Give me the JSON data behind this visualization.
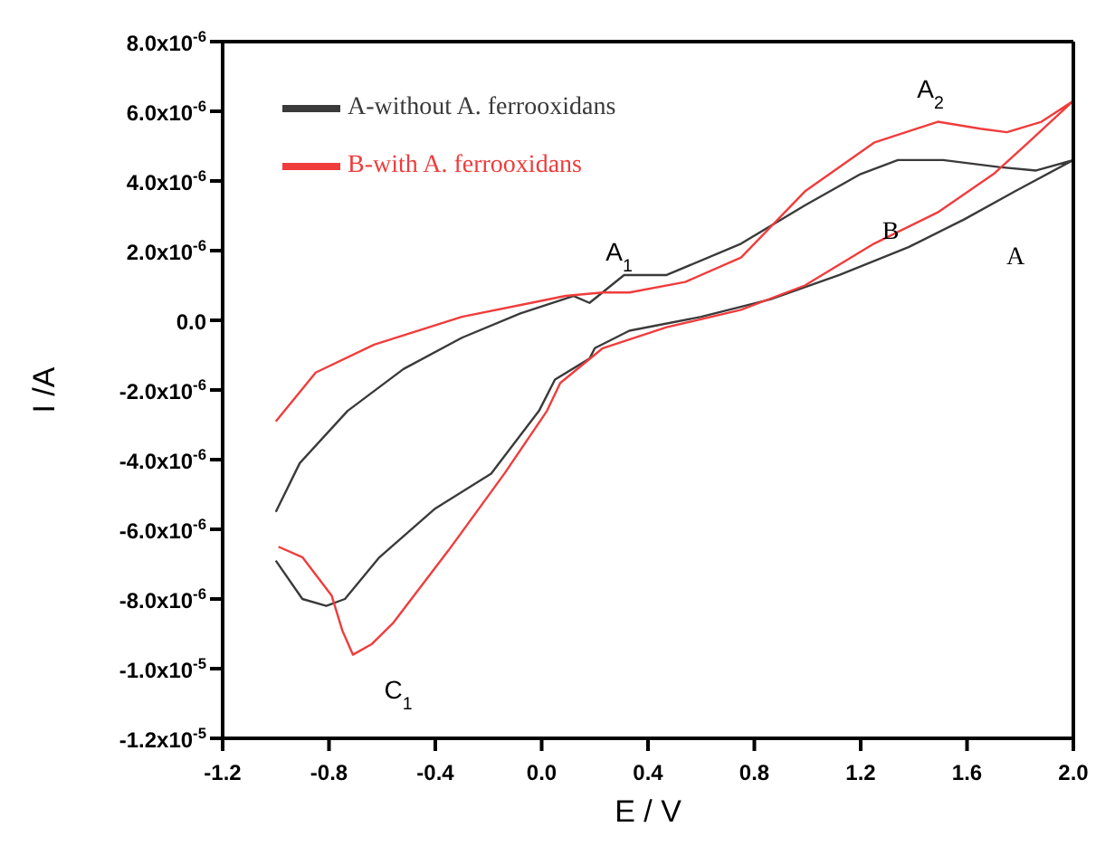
{
  "chart_data": {
    "type": "line",
    "xlabel": "E / V",
    "ylabel": "I /A",
    "xlim": [
      -1.2,
      2.0
    ],
    "xticks": [
      -1.2,
      -0.8,
      -0.4,
      {
        "value": 0,
        "label": "0.0"
      },
      0.4,
      0.8,
      1.2,
      1.6,
      {
        "value": 2,
        "label": "2.0"
      }
    ],
    "ylim": [
      -1.2e-05,
      8e-06
    ],
    "yticks": [
      {
        "value": -1.2e-05,
        "label": "-1.2x10$^{-5}$"
      },
      {
        "value": -1e-05,
        "label": "-1.0x10$^{-5}$"
      },
      {
        "value": -8e-06,
        "label": "-8.0x10$^{-6}$"
      },
      {
        "value": -6e-06,
        "label": "-6.0x10$^{-6}$"
      },
      {
        "value": -4e-06,
        "label": "-4.0x10$^{-6}$"
      },
      {
        "value": -2e-06,
        "label": "-2.0x10$^{-6}$"
      },
      {
        "value": 0,
        "label": "0.0"
      },
      {
        "value": 2e-06,
        "label": "2.0x10$^{-6}$"
      },
      {
        "value": 4e-06,
        "label": "4.0x10$^{-6}$"
      },
      {
        "value": 6e-06,
        "label": "6.0x10$^{-6}$"
      },
      {
        "value": 8e-06,
        "label": "8.0x10$^{-6}$"
      }
    ],
    "legend": "top left",
    "marker": "none",
    "line_style": "solid",
    "series": [
      {
        "name": "A-without A. ferrooxidans",
        "color": "#3a3a3a",
        "x": [
          -1.0,
          -0.91,
          -0.73,
          -0.52,
          -0.3,
          -0.08,
          0.12,
          0.18,
          0.31,
          0.47,
          0.75,
          0.99,
          1.2,
          1.34,
          1.51,
          1.72,
          1.86,
          2.0,
          1.78,
          1.59,
          1.38,
          1.12,
          0.86,
          0.6,
          0.33,
          0.2,
          0.18,
          0.05,
          -0.01,
          -0.19,
          -0.4,
          -0.61,
          -0.74,
          -0.81,
          -0.9,
          -1.0
        ],
        "values": [
          -5.5e-06,
          -4.1e-06,
          -2.6e-06,
          -1.4e-06,
          -5e-07,
          2e-07,
          7e-07,
          5e-07,
          1.3e-06,
          1.3e-06,
          2.2e-06,
          3.3e-06,
          4.2e-06,
          4.6e-06,
          4.6e-06,
          4.4e-06,
          4.3e-06,
          4.6e-06,
          3.7e-06,
          2.9e-06,
          2.1e-06,
          1.3e-06,
          6e-07,
          1e-07,
          -3e-07,
          -8e-07,
          -1.1e-06,
          -1.7e-06,
          -2.6e-06,
          -4.4e-06,
          -5.4e-06,
          -6.8e-06,
          -8e-06,
          -8.2e-06,
          -8e-06,
          -6.9e-06
        ]
      },
      {
        "name": "B-with A. ferrooxidans",
        "color": "#f03c3c",
        "x": [
          -1.0,
          -0.85,
          -0.63,
          -0.3,
          -0.04,
          0.09,
          0.23,
          0.33,
          0.54,
          0.75,
          0.99,
          1.25,
          1.49,
          1.65,
          1.75,
          1.88,
          2.0,
          1.83,
          1.7,
          1.49,
          1.25,
          0.99,
          0.75,
          0.47,
          0.23,
          0.07,
          0.02,
          -0.14,
          -0.35,
          -0.56,
          -0.64,
          -0.71,
          -0.75,
          -0.79,
          -0.9,
          -0.99
        ],
        "values": [
          -2.9e-06,
          -1.5e-06,
          -7e-07,
          1e-07,
          5e-07,
          7e-07,
          8e-07,
          8e-07,
          1.1e-06,
          1.8e-06,
          3.7e-06,
          5.1e-06,
          5.7e-06,
          5.5e-06,
          5.4e-06,
          5.7e-06,
          6.3e-06,
          5.1e-06,
          4.2e-06,
          3.1e-06,
          2.2e-06,
          1e-06,
          3e-07,
          -2e-07,
          -8e-07,
          -1.8e-06,
          -2.6e-06,
          -4.4e-06,
          -6.6e-06,
          -8.7e-06,
          -9.3e-06,
          -9.6e-06,
          -8.9e-06,
          -7.9e-06,
          -6.8e-06,
          -6.5e-06
        ]
      }
    ],
    "annotations": [
      "A$_{1}$",
      "A$_{2}$",
      "B",
      "A",
      "C$_{1}$"
    ]
  }
}
